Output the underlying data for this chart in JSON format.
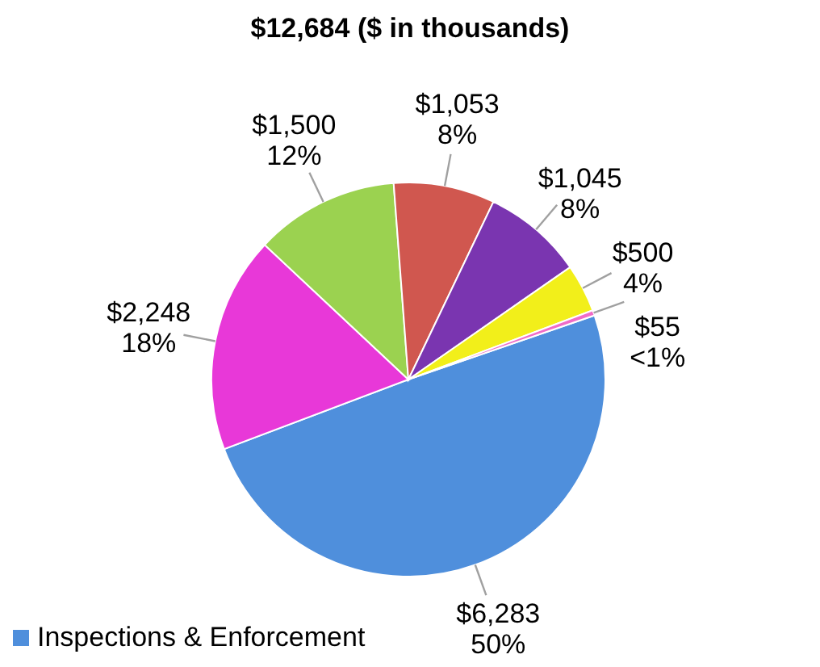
{
  "chart_data": {
    "type": "pie",
    "title": "$12,684 ($ in thousands)",
    "categories": [
      "Inspections & Enforcement",
      null,
      null,
      null,
      null,
      null,
      null
    ],
    "values": [
      6283,
      2248,
      1500,
      1053,
      1045,
      500,
      55
    ],
    "colors": [
      "#4f8fdc",
      "#e838d8",
      "#9bd250",
      "#d0574f",
      "#7a35b0",
      "#f2ef1a",
      "#f06bc8"
    ],
    "value_labels": [
      "$6,283\n50%",
      "$2,248\n18%",
      "$1,500\n12%",
      "$1,053\n8%",
      "$1,045\n8%",
      "$500\n4%",
      "$55\n<1%"
    ],
    "legend": "bottom left"
  }
}
